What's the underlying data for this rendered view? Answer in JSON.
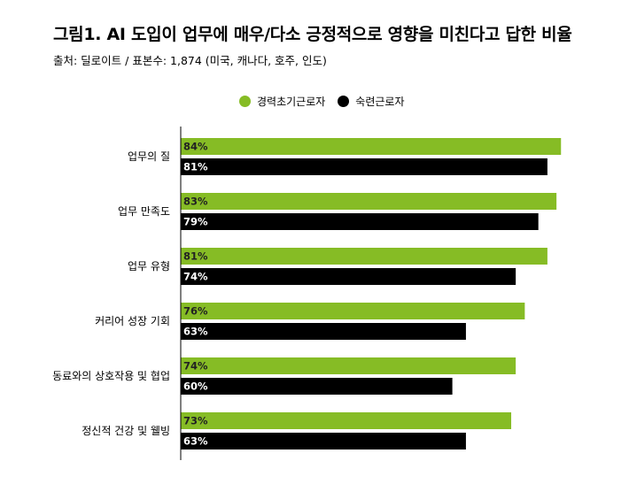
{
  "title": "그림1. AI 도입이 업무에 매우/다소 긍정적으로 영향을 미친다고 답한 비율",
  "subtitle": "출처: 딜로이트 / 표본수: 1,874 (미국, 캐나다, 호주, 인도)",
  "colors": {
    "early": "#86bc25",
    "senior": "#000000",
    "early_label_text": "#222222",
    "senior_label_text": "#ffffff",
    "axis": "#000000"
  },
  "chart_data": {
    "type": "bar",
    "orientation": "horizontal",
    "title": "그림1. AI 도입이 업무에 매우/다소 긍정적으로 영향을 미친다고 답한 비율",
    "subtitle": "출처: 딜로이트 / 표본수: 1,874 (미국, 캐나다, 호주, 인도)",
    "categories": [
      "업무의 질",
      "업무 만족도",
      "업무 유형",
      "커리어 성장 기회",
      "동료와의 상호작용 및 협업",
      "정신적 건강 및 웰빙"
    ],
    "series": [
      {
        "name": "경력초기근로자",
        "values": [
          84,
          83,
          81,
          76,
          74,
          73
        ],
        "labels": [
          "84%",
          "83%",
          "81%",
          "76%",
          "74%",
          "73%"
        ]
      },
      {
        "name": "숙련근로자",
        "values": [
          81,
          79,
          74,
          63,
          60,
          63
        ],
        "labels": [
          "81%",
          "79%",
          "74%",
          "63%",
          "60%",
          "63%"
        ]
      }
    ],
    "xlim": [
      0,
      100
    ],
    "legend_position": "top",
    "grid": false
  }
}
